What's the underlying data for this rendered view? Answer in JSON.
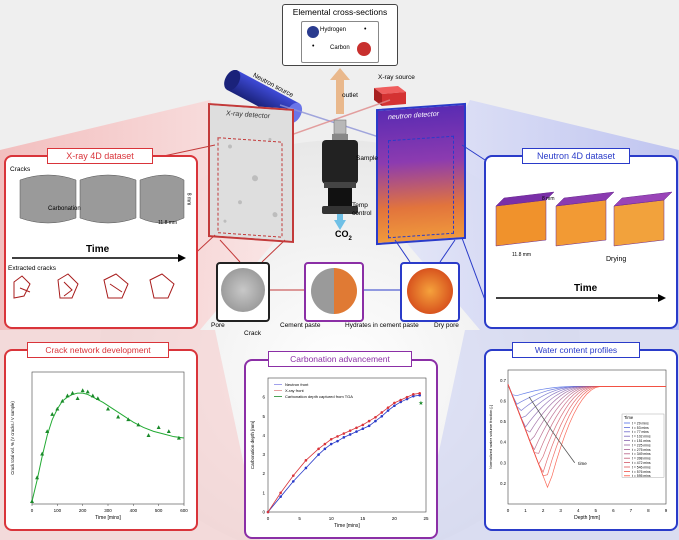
{
  "colors": {
    "red": "#d9343a",
    "blue": "#2a3bc9",
    "purple": "#8b2fa6",
    "green": "#1a9a2a"
  },
  "header": {
    "title": "Elemental cross-sections",
    "legend": [
      {
        "name": "Hydrogen",
        "small": "•",
        "color": "#2a3b8f"
      },
      {
        "name": "Carbon",
        "small": "•",
        "color": "#c8302e"
      }
    ]
  },
  "apparatus": {
    "neutron_source": "Neutron source",
    "xray_source": "X-ray source",
    "outlet": "outlet",
    "xray_detector": "X-ray detector",
    "neutron_detector": "neutron detector",
    "sample": "Sample",
    "temp_control": "Temp\ncontrol",
    "co2": "CO",
    "co2_sub": "2"
  },
  "xray_panel": {
    "title": "X-ray 4D dataset",
    "cracks": "Cracks",
    "carbonation": "Carbonation",
    "time": "Time",
    "extracted": "Extracted cracks",
    "dim_w": "11.8 mm",
    "dim_h": "8 mm"
  },
  "neutron_panel": {
    "title": "Neutron 4D dataset",
    "dim_w": "11.8 mm",
    "dim_h": "8 mm",
    "drying": "Drying",
    "time": "Time"
  },
  "slice_labels": {
    "pore": "Pore",
    "crack": "Crack",
    "cement_paste": "Cement paste",
    "hydrates": "Hydrates in cement paste",
    "dry_pore": "Dry pore"
  },
  "crack_chart": {
    "title": "Crack network development",
    "chart_data": {
      "type": "scatter",
      "ylabel": "Crack total vol. % (V cracks / V sample)",
      "xlabel": "Time [mins]",
      "xlim": [
        0,
        600
      ],
      "xticks": [
        0,
        100,
        200,
        300,
        400,
        500,
        600
      ],
      "points_x": [
        0,
        20,
        40,
        60,
        80,
        100,
        120,
        140,
        160,
        180,
        200,
        220,
        240,
        260,
        300,
        340,
        380,
        420,
        460,
        500,
        540,
        580
      ],
      "points_y": [
        0.02,
        0.2,
        0.38,
        0.55,
        0.68,
        0.72,
        0.78,
        0.82,
        0.84,
        0.8,
        0.86,
        0.85,
        0.82,
        0.8,
        0.72,
        0.66,
        0.64,
        0.6,
        0.52,
        0.58,
        0.55,
        0.5
      ],
      "fit_x": [
        0,
        20,
        40,
        60,
        80,
        100,
        120,
        140,
        160,
        180,
        200,
        220,
        240,
        280,
        320,
        360,
        400,
        440,
        480,
        520,
        560,
        600
      ],
      "fit_y": [
        0.02,
        0.18,
        0.36,
        0.52,
        0.64,
        0.72,
        0.78,
        0.81,
        0.83,
        0.84,
        0.84,
        0.83,
        0.81,
        0.77,
        0.72,
        0.67,
        0.62,
        0.58,
        0.55,
        0.53,
        0.51,
        0.5
      ],
      "ylim": [
        0,
        1
      ]
    }
  },
  "carb_chart": {
    "title": "Carbonation advancement",
    "chart_data": {
      "type": "line",
      "ylabel": "Carbonation depth [mm]",
      "xlabel": "Time [mins]",
      "xlim": [
        0,
        25
      ],
      "ylim": [
        0,
        7
      ],
      "xticks": [
        0,
        5,
        10,
        15,
        20,
        25
      ],
      "yticks": [
        0,
        1,
        2,
        3,
        4,
        5,
        6
      ],
      "legend": [
        "Neutron front",
        "X-ray front",
        "Carbonation depth captured from TGA"
      ],
      "series": [
        {
          "name": "Neutron front",
          "x": [
            0,
            2,
            4,
            6,
            8,
            9,
            10,
            11,
            12,
            13,
            14,
            15,
            16,
            17,
            18,
            19,
            20,
            21,
            22,
            23,
            24
          ],
          "y": [
            0,
            0.8,
            1.6,
            2.3,
            3.0,
            3.3,
            3.55,
            3.7,
            3.9,
            4.05,
            4.2,
            4.35,
            4.5,
            4.75,
            5.0,
            5.3,
            5.55,
            5.75,
            5.9,
            6.05,
            6.1
          ]
        },
        {
          "name": "X-ray front",
          "x": [
            0,
            2,
            4,
            6,
            8,
            9,
            10,
            11,
            12,
            13,
            14,
            15,
            16,
            17,
            18,
            19,
            20,
            21,
            22,
            23,
            24
          ],
          "y": [
            0,
            1.0,
            1.9,
            2.7,
            3.3,
            3.55,
            3.8,
            3.95,
            4.1,
            4.25,
            4.4,
            4.55,
            4.75,
            4.95,
            5.2,
            5.45,
            5.7,
            5.85,
            6.0,
            6.15,
            6.2
          ]
        },
        {
          "name": "Carbonation depth captured from TGA",
          "x": [
            24.2
          ],
          "y": [
            5.7
          ]
        }
      ]
    }
  },
  "water_chart": {
    "title": "Water content profiles",
    "chart_data": {
      "type": "line",
      "ylabel": "Normalized water volume fraction [-]",
      "xlabel": "Depth [mm]",
      "xlim": [
        0,
        9
      ],
      "ylim": [
        0.1,
        0.75
      ],
      "xticks": [
        0,
        1,
        2,
        3,
        4,
        5,
        6,
        7,
        8,
        9
      ],
      "yticks": [
        0.2,
        0.3,
        0.4,
        0.5,
        0.6,
        0.7
      ],
      "annotation": "time",
      "legend_title": "Time",
      "legend": [
        "t = 29 mins",
        "t = 53 mins",
        "t = 77 mins",
        "t = 102 mins",
        "t = 151 mins",
        "t = 225 mins",
        "t = 275 mins",
        "t = 349 mins",
        "t = 398 mins",
        "t = 472 mins",
        "t = 546 mins",
        "t = 576 mins",
        "t = 595 mins"
      ]
    }
  }
}
